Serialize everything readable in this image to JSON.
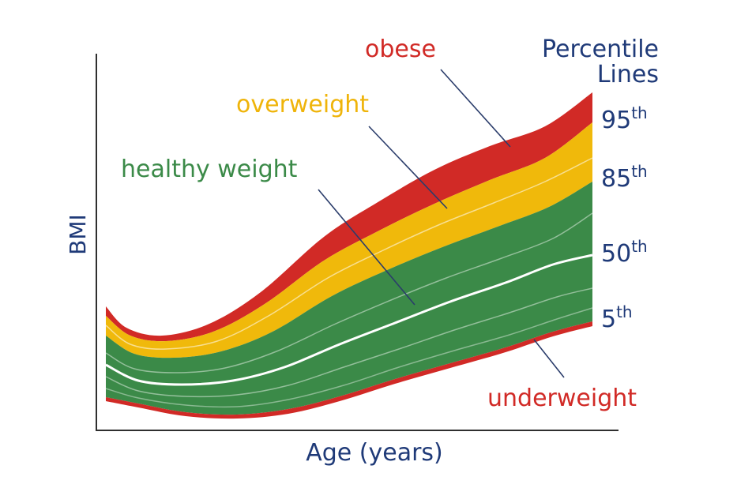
{
  "chart_data": {
    "type": "area",
    "xlabel": "Age (years)",
    "ylabel": "BMI",
    "zones": [
      {
        "name": "obese",
        "color": "#d12a26"
      },
      {
        "name": "overweight",
        "color": "#f0b90b"
      },
      {
        "name": "healthy weight",
        "color": "#3b8a48"
      },
      {
        "name": "underweight",
        "color": "#d12a26"
      }
    ],
    "legend_title": "Percentile Lines",
    "percentiles": [
      {
        "num": "95",
        "suffix": "th"
      },
      {
        "num": "85",
        "suffix": "th"
      },
      {
        "num": "50",
        "suffix": "th"
      },
      {
        "num": "5",
        "suffix": "th"
      }
    ],
    "colors": {
      "axis": "#2f2f2f",
      "text_dark": "#1f3a78",
      "obese": "#d12a26",
      "overweight": "#f0b90b",
      "healthy": "#3b8a48",
      "underweight": "#d12a26",
      "median_line": "#ffffff"
    }
  }
}
